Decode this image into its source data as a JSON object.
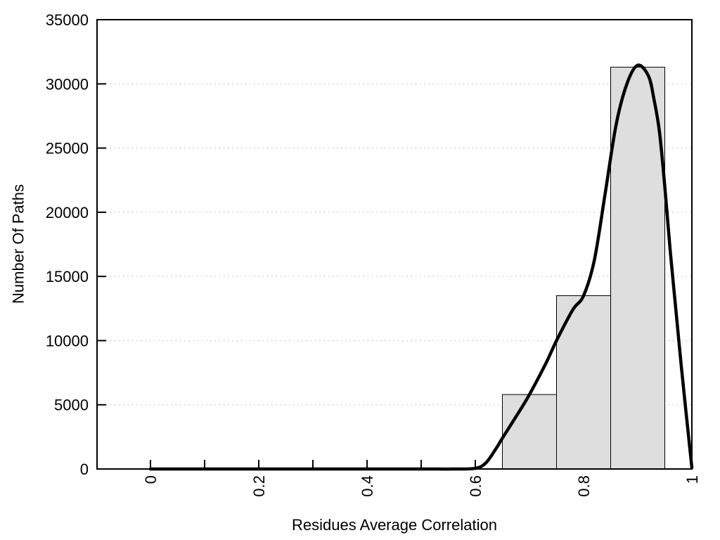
{
  "figure": {
    "background": "#ffffff"
  },
  "chart_data": {
    "type": "bar",
    "subtype": "histogram-with-density-curve",
    "title": "",
    "xlabel": "Residues Average Correlation",
    "ylabel": "Number Of Paths",
    "xlim": [
      -0.0987,
      1.0
    ],
    "ylim": [
      0,
      35000
    ],
    "grid": {
      "axis": "y",
      "style": "dotted",
      "color": "#c4c4c4"
    },
    "frame_color": "#000000",
    "x_ticks": [
      {
        "value": 0.0,
        "label": "0"
      },
      {
        "value": 0.1,
        "label": ""
      },
      {
        "value": 0.2,
        "label": "0.2"
      },
      {
        "value": 0.3,
        "label": ""
      },
      {
        "value": 0.4,
        "label": "0.4"
      },
      {
        "value": 0.5,
        "label": ""
      },
      {
        "value": 0.6,
        "label": "0.6"
      },
      {
        "value": 0.7,
        "label": ""
      },
      {
        "value": 0.8,
        "label": "0.8"
      },
      {
        "value": 0.9,
        "label": ""
      },
      {
        "value": 1.0,
        "label": "1"
      }
    ],
    "y_ticks": [
      {
        "value": 0,
        "label": "0"
      },
      {
        "value": 5000,
        "label": "5000"
      },
      {
        "value": 10000,
        "label": "10000"
      },
      {
        "value": 15000,
        "label": "15000"
      },
      {
        "value": 20000,
        "label": "20000"
      },
      {
        "value": 25000,
        "label": "25000"
      },
      {
        "value": 30000,
        "label": "30000"
      },
      {
        "value": 35000,
        "label": "35000"
      }
    ],
    "bars": {
      "fill": "#dedede",
      "border": "#000000",
      "bins": [
        {
          "range": [
            0.65,
            0.75
          ],
          "count": 5800
        },
        {
          "range": [
            0.75,
            0.85
          ],
          "count": 13500
        },
        {
          "range": [
            0.85,
            0.95
          ],
          "count": 31300
        }
      ]
    },
    "curve": {
      "color": "#000000",
      "width": 4.5,
      "points": [
        [
          0.0,
          0
        ],
        [
          0.1,
          0
        ],
        [
          0.2,
          0
        ],
        [
          0.3,
          0
        ],
        [
          0.4,
          0
        ],
        [
          0.5,
          0
        ],
        [
          0.56,
          0
        ],
        [
          0.6,
          50
        ],
        [
          0.62,
          500
        ],
        [
          0.64,
          1700
        ],
        [
          0.65,
          2400
        ],
        [
          0.68,
          4400
        ],
        [
          0.7,
          5800
        ],
        [
          0.73,
          8200
        ],
        [
          0.75,
          10000
        ],
        [
          0.78,
          12400
        ],
        [
          0.8,
          13500
        ],
        [
          0.82,
          16300
        ],
        [
          0.84,
          21500
        ],
        [
          0.86,
          26800
        ],
        [
          0.88,
          30000
        ],
        [
          0.9,
          31450
        ],
        [
          0.92,
          30600
        ],
        [
          0.93,
          28800
        ],
        [
          0.94,
          26300
        ],
        [
          0.95,
          22000
        ],
        [
          0.96,
          17000
        ],
        [
          0.97,
          12600
        ],
        [
          0.98,
          8200
        ],
        [
          0.99,
          4100
        ],
        [
          1.0,
          100
        ]
      ]
    }
  }
}
